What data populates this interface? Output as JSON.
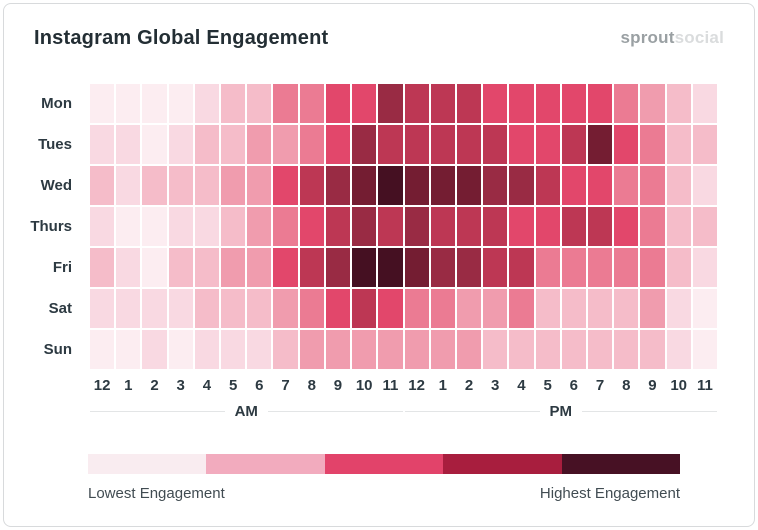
{
  "header": {
    "title": "Instagram Global Engagement",
    "logo_bold": "sprout",
    "logo_light": "social"
  },
  "chart_data": {
    "type": "heatmap",
    "title": "Instagram Global Engagement",
    "days": [
      "Mon",
      "Tues",
      "Wed",
      "Thurs",
      "Fri",
      "Sat",
      "Sun"
    ],
    "hours": [
      "12",
      "1",
      "2",
      "3",
      "4",
      "5",
      "6",
      "7",
      "8",
      "9",
      "10",
      "11",
      "12",
      "1",
      "2",
      "3",
      "4",
      "5",
      "6",
      "7",
      "8",
      "9",
      "10",
      "11"
    ],
    "period_labels": {
      "am": "AM",
      "pm": "PM"
    },
    "value_scale": "relative engagement level, 0 = lowest to 9 = highest",
    "values": [
      [
        0,
        0,
        0,
        0,
        1,
        2,
        2,
        4,
        4,
        5,
        5,
        7,
        6,
        6,
        6,
        5,
        5,
        5,
        5,
        5,
        4,
        3,
        2,
        1
      ],
      [
        1,
        1,
        0,
        1,
        2,
        2,
        3,
        3,
        4,
        5,
        7,
        6,
        6,
        6,
        6,
        6,
        5,
        5,
        6,
        8,
        5,
        4,
        2,
        2
      ],
      [
        2,
        1,
        2,
        2,
        2,
        3,
        3,
        5,
        6,
        7,
        8,
        9,
        8,
        8,
        8,
        7,
        7,
        6,
        5,
        5,
        4,
        4,
        2,
        1
      ],
      [
        1,
        0,
        0,
        1,
        1,
        2,
        3,
        4,
        5,
        6,
        7,
        6,
        7,
        6,
        6,
        6,
        5,
        5,
        6,
        6,
        5,
        4,
        2,
        2
      ],
      [
        2,
        1,
        0,
        2,
        2,
        3,
        3,
        5,
        6,
        7,
        9,
        9,
        8,
        7,
        7,
        6,
        6,
        4,
        4,
        4,
        4,
        4,
        2,
        1
      ],
      [
        1,
        1,
        1,
        1,
        2,
        2,
        2,
        3,
        4,
        5,
        6,
        5,
        4,
        4,
        3,
        3,
        4,
        2,
        2,
        2,
        2,
        3,
        1,
        0
      ],
      [
        0,
        0,
        1,
        0,
        1,
        1,
        1,
        2,
        3,
        3,
        3,
        3,
        3,
        3,
        3,
        2,
        2,
        2,
        2,
        2,
        2,
        2,
        1,
        0
      ]
    ],
    "palette": [
      "#fcedf1",
      "#f9d9e2",
      "#f5bcc9",
      "#f09cae",
      "#eb7b93",
      "#e2476b",
      "#bd3754",
      "#992b44",
      "#741d32",
      "#451022"
    ],
    "legend": {
      "colors": [
        "#f9ecf0",
        "#f2abbe",
        "#e2436a",
        "#a81e3e",
        "#471124"
      ],
      "low_label": "Lowest Engagement",
      "high_label": "Highest Engagement"
    }
  }
}
